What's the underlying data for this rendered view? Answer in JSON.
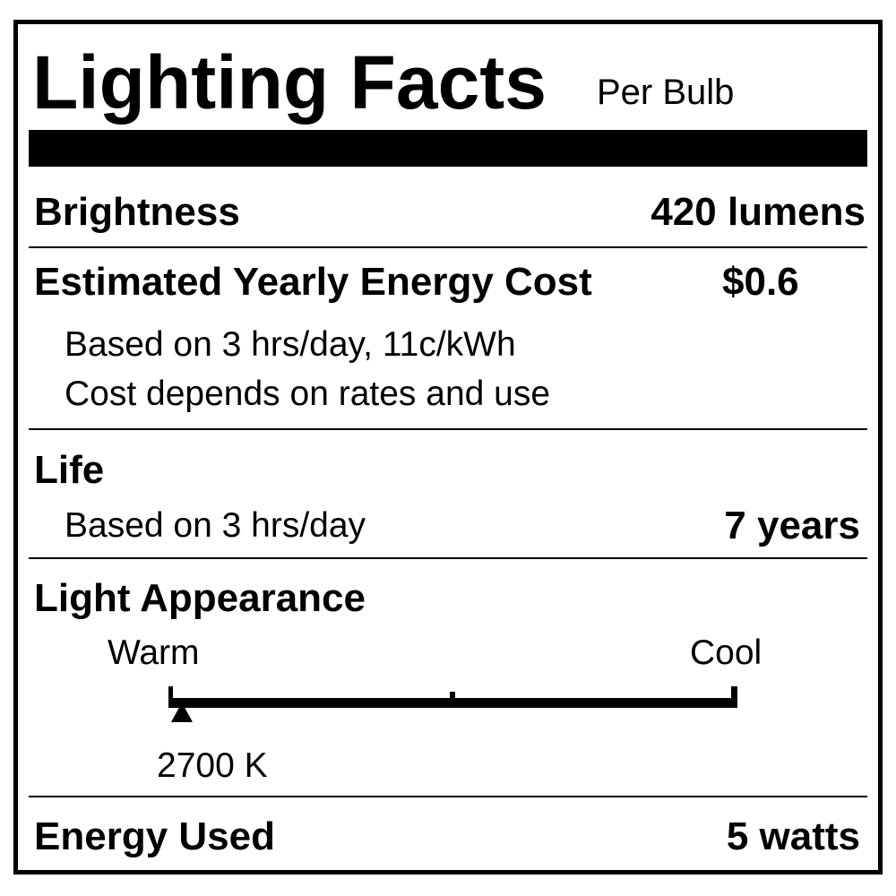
{
  "title": "Lighting Facts",
  "subtitle": "Per Bulb",
  "brightness": {
    "label": "Brightness",
    "value": "420 lumens"
  },
  "energy_cost": {
    "label": "Estimated Yearly Energy Cost",
    "value": "$0.6",
    "note1": "Based on 3 hrs/day, 11c/kWh",
    "note2": "Cost depends on rates and use"
  },
  "life": {
    "label": "Life",
    "note": "Based on 3 hrs/day",
    "value": "7 years"
  },
  "light_appearance": {
    "label": "Light Appearance",
    "warm_label": "Warm",
    "cool_label": "Cool",
    "value": "2700 K",
    "scale_position_fraction": 0.02
  },
  "energy_used": {
    "label": "Energy Used",
    "value": "5 watts"
  }
}
